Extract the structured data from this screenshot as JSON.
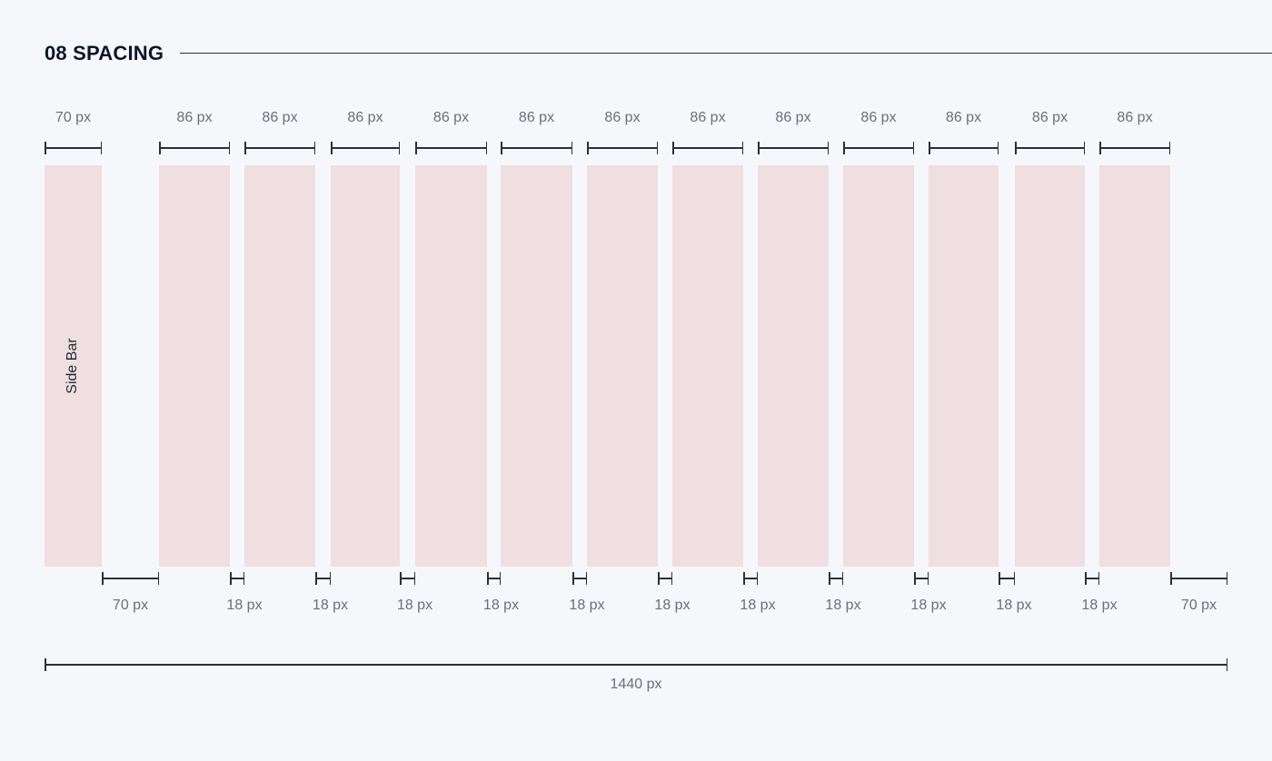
{
  "header": {
    "title": "08 SPACING"
  },
  "layout": {
    "sidebar": {
      "label": "Side Bar",
      "width_label": "70 px"
    },
    "column_width_label": "86 px",
    "column_count": 12,
    "gutter_label": "18 px",
    "outer_margin_labels": [
      "70 px",
      "70 px"
    ],
    "total_width_label": "1440 px"
  },
  "colors": {
    "background": "#f6f7fa",
    "column_fill": "#f0dfe0",
    "rule": "#2b2f36",
    "label": "#6b6f76",
    "title": "#0f172a"
  }
}
